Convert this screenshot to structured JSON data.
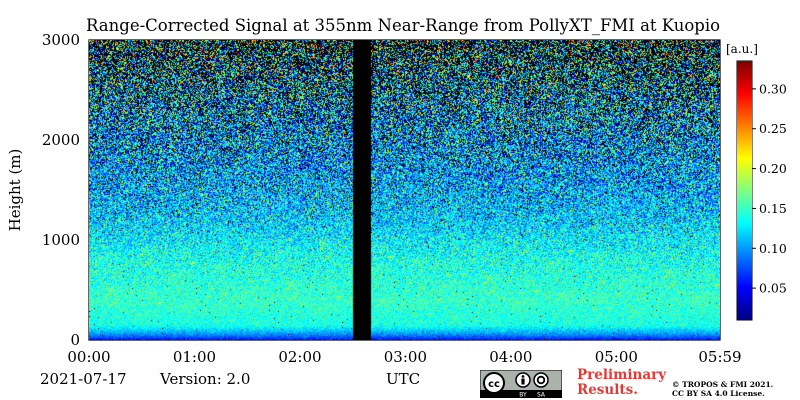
{
  "chart_data": {
    "type": "heatmap",
    "title": "Range-Corrected Signal at 355nm Near-Range from PollyXT_FMI at Kuopio",
    "xlabel": "UTC",
    "ylabel": "Height (m)",
    "x_ticks": [
      "00:00",
      "01:00",
      "02:00",
      "03:00",
      "04:00",
      "05:00",
      "05:59"
    ],
    "x_range_hours": [
      0,
      5.983
    ],
    "y_ticks": [
      0,
      1000,
      2000,
      3000
    ],
    "y_range": [
      0,
      3000
    ],
    "colorbar": {
      "label": "[a.u.]",
      "ticks": [
        0.05,
        0.1,
        0.15,
        0.2,
        0.25,
        0.3
      ],
      "tick_labels": [
        "0.05",
        "0.10",
        "0.15",
        "0.20",
        "0.25",
        "0.30"
      ],
      "range": [
        0.01,
        0.335
      ],
      "colormap": "jet",
      "position": "right"
    },
    "data_gap_hours": [
      2.5,
      2.67
    ],
    "gap_color": "#000000",
    "profile_by_height": [
      {
        "height": 0,
        "signal": 0.05
      },
      {
        "height": 50,
        "signal": 0.09
      },
      {
        "height": 150,
        "signal": 0.14
      },
      {
        "height": 400,
        "signal": 0.15
      },
      {
        "height": 800,
        "signal": 0.14
      },
      {
        "height": 1200,
        "signal": 0.12
      },
      {
        "height": 1600,
        "signal": 0.11
      },
      {
        "height": 2000,
        "signal": 0.11
      },
      {
        "height": 2500,
        "signal": 0.12
      },
      {
        "height": 3000,
        "signal": 0.14
      }
    ]
  },
  "footer": {
    "date": "2021-07-17",
    "version": "Version: 2.0",
    "preliminary": [
      "Preliminary",
      "Results."
    ],
    "copyright": [
      "© TROPOS & FMI 2021.",
      "CC BY SA 4.0 License."
    ],
    "license_badge": [
      "BY",
      "SA"
    ]
  },
  "colors": {
    "preliminary_text": "#e53935",
    "missing_data": "#000000"
  }
}
